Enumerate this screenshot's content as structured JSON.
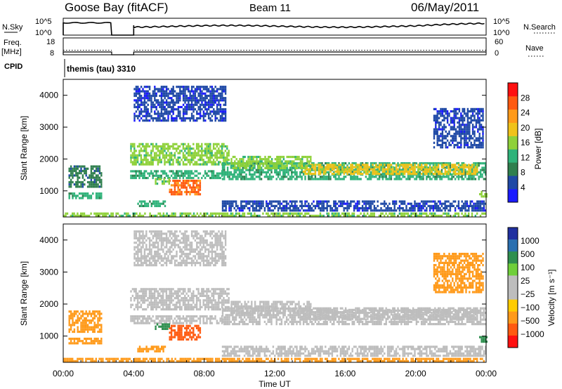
{
  "header": {
    "station": "Goose Bay (fitACF)",
    "beam": "Beam 11",
    "date": "06/May/2011"
  },
  "noise_panel": {
    "left_label": "N.Sky",
    "left_ticks": [
      "10^5",
      "10^0"
    ],
    "right_ticks": [
      "10^5",
      "10^0"
    ],
    "right_label": "N.Search"
  },
  "freq_panel": {
    "left_label_1": "Freq.",
    "left_label_2": "[MHz]",
    "left_ticks": [
      "18",
      "8"
    ],
    "right_ticks": [
      "60",
      "0"
    ],
    "right_label": "Nave"
  },
  "cpid": {
    "label": "CPID",
    "value": "themis (tau) 3310"
  },
  "colors": {
    "power_scale": [
      "#1a1aff",
      "#1f49a6",
      "#2f7f4e",
      "#2fb37a",
      "#8fd13a",
      "#f0c21a",
      "#ff9a1a",
      "#ff5a10",
      "#ff1010"
    ],
    "velocity_scale": [
      "#2030a0",
      "#2a6fb0",
      "#2f8f4f",
      "#6fcf3a",
      "#bdbdbd",
      "#bdbdbd",
      "#ffcc00",
      "#ff9a1a",
      "#ff5a10",
      "#ff1010"
    ],
    "ground_scatter": "#bdbdbd"
  },
  "chart_data": [
    {
      "type": "heatmap",
      "panel": "power",
      "ylabel": "Slant Range [km]",
      "yticks": [
        "1000",
        "2000",
        "3000",
        "4000"
      ],
      "ylim": [
        180,
        4500
      ],
      "xlim": [
        0,
        24
      ],
      "colorbar": {
        "label": "Power [dB]",
        "ticks": [
          "4",
          "8",
          "12",
          "16",
          "20",
          "24",
          "28"
        ],
        "range": [
          0,
          30
        ]
      },
      "series": [
        {
          "values": [
            [
              0.3,
              2.2,
              1100,
              1800,
              8
            ],
            [
              0.3,
              2.2,
              800,
              950,
              10
            ],
            [
              3.8,
              9.4,
              1800,
              2500,
              14
            ],
            [
              3.8,
              9.0,
              1400,
              1650,
              12
            ],
            [
              6.0,
              7.8,
              900,
              1350,
              26
            ],
            [
              5.2,
              6.0,
              1200,
              1400,
              16
            ],
            [
              4.2,
              5.8,
              500,
              700,
              12
            ],
            [
              4.0,
              9.2,
              3200,
              4300,
              6
            ],
            [
              9.0,
              24.0,
              1350,
              1900,
              10
            ],
            [
              13.5,
              23.5,
              1550,
              1850,
              18
            ],
            [
              9.5,
              14.0,
              1700,
              2100,
              16
            ],
            [
              9.0,
              24.0,
              350,
              700,
              6
            ],
            [
              0.0,
              24.0,
              200,
              320,
              14
            ],
            [
              21.0,
              23.8,
              2400,
              3600,
              4
            ],
            [
              23.6,
              24.0,
              800,
              1000,
              16
            ]
          ]
        }
      ]
    },
    {
      "type": "heatmap",
      "panel": "velocity",
      "ylabel": "Slant Range [km]",
      "yticks": [
        "1000",
        "2000",
        "3000",
        "4000"
      ],
      "ylim": [
        180,
        4500
      ],
      "xlim": [
        0,
        24
      ],
      "xlabel": "Time UT",
      "xticks": [
        "00:00",
        "04:00",
        "08:00",
        "12:00",
        "16:00",
        "20:00",
        "00:00"
      ],
      "colorbar": {
        "label": "Velocity [m s⁻¹]",
        "ticks": [
          "1000",
          "500",
          "100",
          "25",
          "−25",
          "−100",
          "−500",
          "−1000"
        ]
      },
      "series": [
        {
          "values": [
            [
              0.3,
              2.2,
              1100,
              1800,
              -100
            ],
            [
              0.3,
              2.2,
              800,
              950,
              -200
            ],
            [
              3.8,
              9.4,
              1800,
              2500,
              0
            ],
            [
              3.8,
              9.0,
              1400,
              1650,
              0
            ],
            [
              6.0,
              7.8,
              900,
              1350,
              -800
            ],
            [
              5.2,
              6.0,
              1200,
              1400,
              300
            ],
            [
              4.2,
              5.8,
              500,
              700,
              -300
            ],
            [
              4.0,
              9.2,
              3200,
              4300,
              0
            ],
            [
              9.0,
              24.0,
              1350,
              1900,
              0
            ],
            [
              13.5,
              23.5,
              1550,
              1850,
              0
            ],
            [
              9.5,
              14.0,
              1700,
              2100,
              0
            ],
            [
              9.0,
              24.0,
              350,
              700,
              0
            ],
            [
              0.0,
              24.0,
              200,
              320,
              -300
            ],
            [
              21.0,
              23.8,
              2400,
              3600,
              -150
            ],
            [
              23.6,
              24.0,
              800,
              1000,
              200
            ]
          ]
        }
      ]
    }
  ]
}
